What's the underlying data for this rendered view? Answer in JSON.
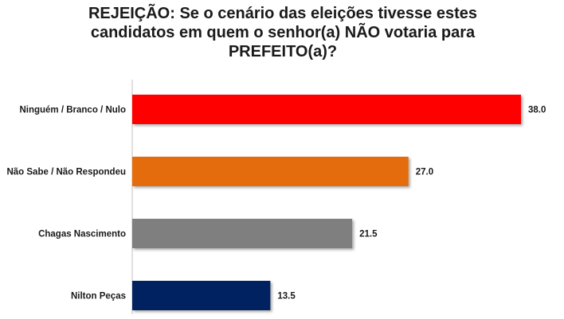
{
  "chart_data": {
    "type": "bar",
    "orientation": "horizontal",
    "title": "REJEIÇÃO: Se o cenário das eleições tivesse estes candidatos em quem o senhor(a) NÃO votaria para PREFEITO(a)?",
    "categories": [
      "Ninguém / Branco / Nulo",
      "Não Sabe / Não Respondeu",
      "Chagas Nascimento",
      "Nilton Peças"
    ],
    "values": [
      38.0,
      27.0,
      21.5,
      13.5
    ],
    "value_labels": [
      "38.0",
      "27.0",
      "21.5",
      "13.5"
    ],
    "colors": [
      "#ff0000",
      "#e46c0a",
      "#7f7f7f",
      "#002060"
    ],
    "xlim": [
      0,
      40
    ],
    "grid": false,
    "axis_line": true
  }
}
